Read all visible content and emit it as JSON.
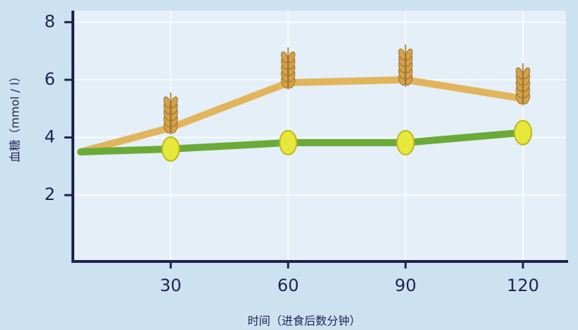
{
  "chart_data": {
    "type": "line",
    "x_label": "时间（进食后数分钟）",
    "y_label": "血糖（mmol / l）",
    "x": [
      7,
      30,
      60,
      90,
      120
    ],
    "series": [
      {
        "color": "#e2b55c",
        "marker": "wheat",
        "values": [
          3.5,
          4.34,
          5.9,
          6.0,
          5.35
        ]
      },
      {
        "color": "#6aaa38",
        "marker": "kernel",
        "values": [
          3.5,
          3.6,
          3.82,
          3.82,
          4.17
        ]
      }
    ],
    "xlim": [
      5,
      131
    ],
    "ylim": [
      -0.3,
      8.4
    ],
    "xticks": [
      30,
      60,
      90,
      120
    ],
    "yticks": [
      2,
      4,
      6,
      8
    ],
    "grid": true
  }
}
